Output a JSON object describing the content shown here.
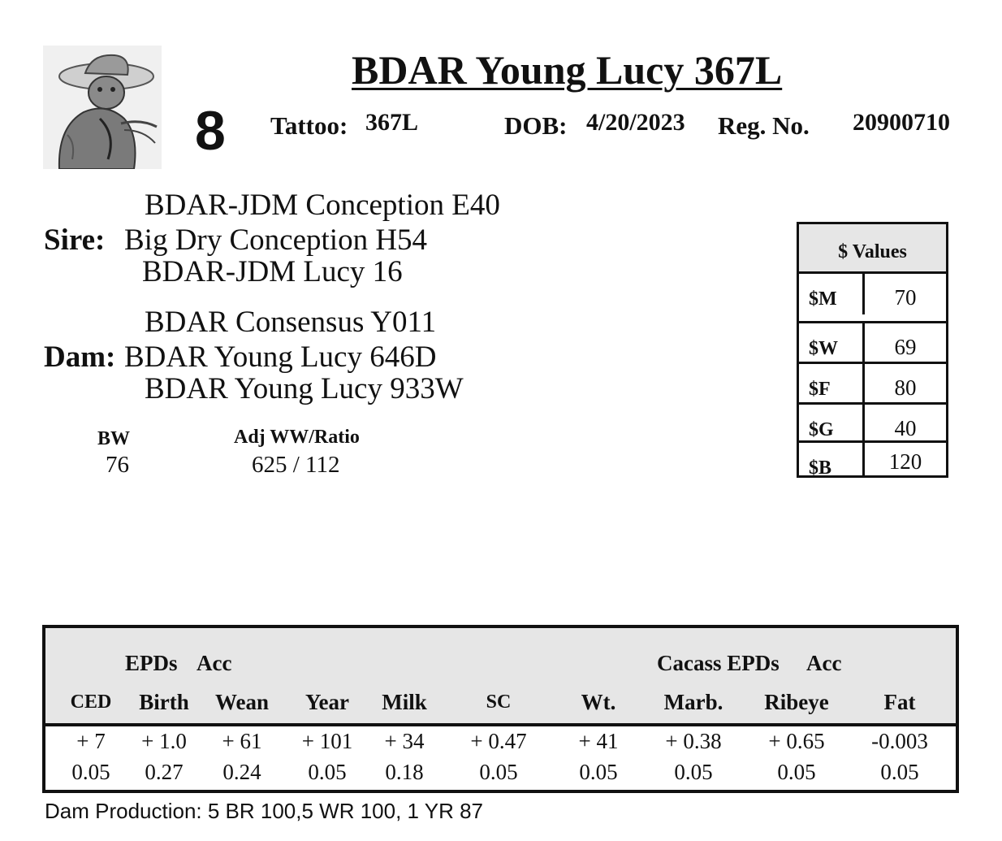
{
  "title": "BDAR Young Lucy 367L",
  "lot_number": "8",
  "header": {
    "tattoo_label": "Tattoo:",
    "tattoo": "367L",
    "dob_label": "DOB:",
    "dob": "4/20/2023",
    "reg_label": "Reg. No.",
    "reg_no": "20900710"
  },
  "pedigree": {
    "sire_label": "Sire:",
    "sire_top": "BDAR-JDM Conception E40",
    "sire": "Big Dry Conception H54",
    "sire_bottom": "BDAR-JDM Lucy 16",
    "dam_label": "Dam:",
    "dam_top": "BDAR Consensus Y011",
    "dam": "BDAR Young Lucy 646D",
    "dam_bottom": "BDAR Young Lucy 933W"
  },
  "performance": {
    "bw_label": "BW",
    "bw": "76",
    "ww_label": "Adj WW/Ratio",
    "ww": "625 / 112"
  },
  "dollar_values": {
    "heading": "$ Values",
    "rows": [
      {
        "label": "$M",
        "value": "70"
      },
      {
        "label": "$W",
        "value": "69"
      },
      {
        "label": "$F",
        "value": "80"
      },
      {
        "label": "$G",
        "value": "40"
      },
      {
        "label": "$B",
        "value": "120"
      }
    ]
  },
  "epd_table": {
    "epds_label": "EPDs",
    "acc_label": "Acc",
    "carcass_label": "Cacass EPDs",
    "carcass_acc_label": "Acc",
    "columns": [
      "CED",
      "Birth",
      "Wean",
      "Year",
      "Milk",
      "SC",
      "Wt.",
      "Marb.",
      "Ribeye",
      "Fat"
    ],
    "epds": [
      "+ 7",
      "+ 1.0",
      "+ 61",
      "+ 101",
      "+ 34",
      "+ 0.47",
      "+ 41",
      "+ 0.38",
      "+ 0.65",
      "-0.003"
    ],
    "acc": [
      "0.05",
      "0.27",
      "0.24",
      "0.05",
      "0.18",
      "0.05",
      "0.05",
      "0.05",
      "0.05",
      "0.05"
    ]
  },
  "dam_production": "Dam Production: 5 BR 100,5 WR 100, 1 YR 87"
}
